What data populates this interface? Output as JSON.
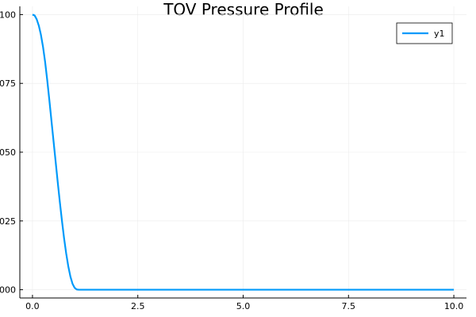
{
  "chart_data": {
    "type": "line",
    "title": "TOV Pressure Profile",
    "xlabel": "",
    "ylabel": "",
    "xlim": [
      -0.3,
      10.3
    ],
    "ylim": [
      -0.003,
      0.103
    ],
    "x_ticks": [
      0,
      2.5,
      5,
      7.5,
      10
    ],
    "x_tick_labels": [
      "0.0",
      "2.5",
      "5.0",
      "7.5",
      "10.0"
    ],
    "y_ticks": [
      0,
      0.025,
      0.05,
      0.075,
      0.1
    ],
    "y_tick_labels": [
      "000",
      "025",
      "050",
      "075",
      "100"
    ],
    "grid": true,
    "legend_position": "top-right",
    "colors": {
      "series": "#009AFA",
      "axis": "#000000",
      "grid": "#ebebeb"
    },
    "series": [
      {
        "name": "y1",
        "x": [
          0,
          0.05,
          0.1,
          0.15,
          0.2,
          0.25,
          0.3,
          0.35,
          0.4,
          0.45,
          0.5,
          0.55,
          0.6,
          0.65,
          0.7,
          0.75,
          0.8,
          0.85,
          0.9,
          0.95,
          1.0,
          1.05,
          1.1,
          1.15,
          1.2,
          2.5,
          5.0,
          7.5,
          10.0
        ],
        "y": [
          0.1,
          0.0997,
          0.0983,
          0.096,
          0.0927,
          0.0883,
          0.0828,
          0.0762,
          0.069,
          0.0615,
          0.054,
          0.0465,
          0.039,
          0.0318,
          0.025,
          0.0187,
          0.0132,
          0.0085,
          0.0048,
          0.0022,
          0.0007,
          0.0001,
          0,
          0,
          0,
          0,
          0,
          0,
          0
        ]
      }
    ]
  }
}
